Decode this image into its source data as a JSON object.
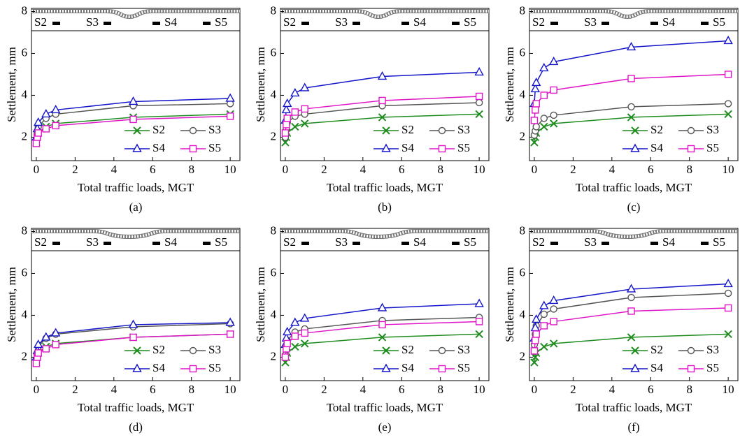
{
  "chart_data": [
    {
      "type": "line",
      "label": "(a)",
      "xlabel": "Total traffic loads, MGT",
      "ylabel": "Settlement, mm",
      "inset_labels": [
        "S2",
        "S3",
        "S4",
        "S5"
      ],
      "legend": "lower right",
      "x": [
        0,
        0.05,
        0.1,
        0.5,
        1,
        5,
        10
      ],
      "xlim": [
        -0.25,
        10.5
      ],
      "xticks": [
        0,
        2,
        4,
        6,
        8,
        10
      ],
      "ylim": [
        0.88,
        8.15
      ],
      "yticks": [
        2,
        4,
        6,
        8
      ],
      "series": [
        {
          "name": "S2",
          "color": "#1e8c1e",
          "marker": "x",
          "values": [
            1.75,
            2.0,
            2.2,
            2.5,
            2.65,
            2.95,
            3.1
          ]
        },
        {
          "name": "S3",
          "color": "#555555",
          "marker": "circle",
          "values": [
            1.9,
            2.2,
            2.5,
            2.9,
            3.1,
            3.5,
            3.6
          ]
        },
        {
          "name": "S4",
          "color": "#1414c8",
          "marker": "triangle",
          "values": [
            2.0,
            2.4,
            2.7,
            3.1,
            3.3,
            3.7,
            3.85
          ]
        },
        {
          "name": "S5",
          "color": "#e014c8",
          "marker": "square",
          "values": [
            1.7,
            2.0,
            2.2,
            2.4,
            2.55,
            2.85,
            3.0
          ]
        }
      ]
    },
    {
      "type": "line",
      "label": "(b)",
      "xlabel": "Total traffic loads, MGT",
      "ylabel": "Settlement, mm",
      "inset_labels": [
        "S2",
        "S3",
        "S4",
        "S5"
      ],
      "legend": "lower right",
      "x": [
        0,
        0.05,
        0.1,
        0.5,
        1,
        5,
        10
      ],
      "xlim": [
        -0.25,
        10.5
      ],
      "xticks": [
        0,
        2,
        4,
        6,
        8,
        10
      ],
      "ylim": [
        0.88,
        8.15
      ],
      "yticks": [
        2,
        4,
        6,
        8
      ],
      "series": [
        {
          "name": "S2",
          "color": "#1e8c1e",
          "marker": "x",
          "values": [
            1.75,
            2.0,
            2.2,
            2.5,
            2.65,
            2.95,
            3.1
          ]
        },
        {
          "name": "S3",
          "color": "#555555",
          "marker": "circle",
          "values": [
            2.0,
            2.4,
            2.7,
            3.0,
            3.1,
            3.5,
            3.65
          ]
        },
        {
          "name": "S4",
          "color": "#1414c8",
          "marker": "triangle",
          "values": [
            2.8,
            3.3,
            3.6,
            4.1,
            4.35,
            4.9,
            5.1
          ]
        },
        {
          "name": "S5",
          "color": "#e014c8",
          "marker": "square",
          "values": [
            2.2,
            2.6,
            2.9,
            3.2,
            3.35,
            3.75,
            3.95
          ]
        }
      ]
    },
    {
      "type": "line",
      "label": "(c)",
      "xlabel": "Total traffic loads, MGT",
      "ylabel": "Settlement, mm",
      "inset_labels": [
        "S2",
        "S3",
        "S4",
        "S5"
      ],
      "legend": "lower right",
      "x": [
        0,
        0.05,
        0.1,
        0.5,
        1,
        5,
        10
      ],
      "xlim": [
        -0.25,
        10.5
      ],
      "xticks": [
        0,
        2,
        4,
        6,
        8,
        10
      ],
      "ylim": [
        0.88,
        8.15
      ],
      "yticks": [
        2,
        4,
        6,
        8
      ],
      "series": [
        {
          "name": "S2",
          "color": "#1e8c1e",
          "marker": "x",
          "values": [
            1.75,
            2.0,
            2.2,
            2.5,
            2.65,
            2.95,
            3.1
          ]
        },
        {
          "name": "S3",
          "color": "#555555",
          "marker": "circle",
          "values": [
            2.1,
            2.3,
            2.5,
            2.9,
            3.05,
            3.45,
            3.6
          ]
        },
        {
          "name": "S4",
          "color": "#1414c8",
          "marker": "triangle",
          "values": [
            3.6,
            4.3,
            4.6,
            5.3,
            5.6,
            6.3,
            6.6
          ]
        },
        {
          "name": "S5",
          "color": "#e014c8",
          "marker": "square",
          "values": [
            2.8,
            3.3,
            3.6,
            4.0,
            4.25,
            4.8,
            5.0
          ]
        }
      ]
    },
    {
      "type": "line",
      "label": "(d)",
      "xlabel": "Total traffic loads, MGT",
      "ylabel": "Settlement, mm",
      "inset_labels": [
        "S2",
        "S3",
        "S4",
        "S5"
      ],
      "legend": "lower right",
      "x": [
        0,
        0.05,
        0.1,
        0.5,
        1,
        5,
        10
      ],
      "xlim": [
        -0.25,
        10.5
      ],
      "xticks": [
        0,
        2,
        4,
        6,
        8,
        10
      ],
      "ylim": [
        0.88,
        8.15
      ],
      "yticks": [
        2,
        4,
        6,
        8
      ],
      "series": [
        {
          "name": "S2",
          "color": "#1e8c1e",
          "marker": "x",
          "values": [
            1.75,
            2.0,
            2.2,
            2.5,
            2.65,
            2.95,
            3.1
          ]
        },
        {
          "name": "S3",
          "color": "#555555",
          "marker": "circle",
          "values": [
            1.9,
            2.2,
            2.5,
            2.9,
            3.1,
            3.45,
            3.6
          ]
        },
        {
          "name": "S4",
          "color": "#1414c8",
          "marker": "triangle",
          "values": [
            2.0,
            2.3,
            2.6,
            2.95,
            3.15,
            3.55,
            3.65
          ]
        },
        {
          "name": "S5",
          "color": "#e014c8",
          "marker": "square",
          "values": [
            1.7,
            2.0,
            2.2,
            2.4,
            2.6,
            2.95,
            3.1
          ]
        }
      ]
    },
    {
      "type": "line",
      "label": "(e)",
      "xlabel": "Total traffic loads, MGT",
      "ylabel": "Settlement, mm",
      "inset_labels": [
        "S2",
        "S3",
        "S4",
        "S5"
      ],
      "legend": "lower right",
      "x": [
        0,
        0.05,
        0.1,
        0.5,
        1,
        5,
        10
      ],
      "xlim": [
        -0.25,
        10.5
      ],
      "xticks": [
        0,
        2,
        4,
        6,
        8,
        10
      ],
      "ylim": [
        0.88,
        8.15
      ],
      "yticks": [
        2,
        4,
        6,
        8
      ],
      "series": [
        {
          "name": "S2",
          "color": "#1e8c1e",
          "marker": "x",
          "values": [
            1.75,
            2.0,
            2.2,
            2.5,
            2.65,
            2.95,
            3.1
          ]
        },
        {
          "name": "S3",
          "color": "#555555",
          "marker": "circle",
          "values": [
            2.1,
            2.5,
            2.8,
            3.2,
            3.35,
            3.75,
            3.9
          ]
        },
        {
          "name": "S4",
          "color": "#1414c8",
          "marker": "triangle",
          "values": [
            2.6,
            2.9,
            3.2,
            3.65,
            3.85,
            4.35,
            4.55
          ]
        },
        {
          "name": "S5",
          "color": "#e014c8",
          "marker": "square",
          "values": [
            2.0,
            2.4,
            2.65,
            3.0,
            3.15,
            3.55,
            3.7
          ]
        }
      ]
    },
    {
      "type": "line",
      "label": "(f)",
      "xlabel": "Total traffic loads, MGT",
      "ylabel": "Settlement, mm",
      "inset_labels": [
        "S2",
        "S3",
        "S4",
        "S5"
      ],
      "legend": "lower right",
      "x": [
        0,
        0.05,
        0.1,
        0.5,
        1,
        5,
        10
      ],
      "xlim": [
        -0.25,
        10.5
      ],
      "xticks": [
        0,
        2,
        4,
        6,
        8,
        10
      ],
      "ylim": [
        0.88,
        8.15
      ],
      "yticks": [
        2,
        4,
        6,
        8
      ],
      "series": [
        {
          "name": "S2",
          "color": "#1e8c1e",
          "marker": "x",
          "values": [
            1.75,
            2.0,
            2.2,
            2.5,
            2.65,
            2.95,
            3.1
          ]
        },
        {
          "name": "S3",
          "color": "#555555",
          "marker": "circle",
          "values": [
            2.6,
            3.1,
            3.5,
            4.05,
            4.3,
            4.85,
            5.05
          ]
        },
        {
          "name": "S4",
          "color": "#1414c8",
          "marker": "triangle",
          "values": [
            2.9,
            3.4,
            3.8,
            4.45,
            4.7,
            5.25,
            5.5
          ]
        },
        {
          "name": "S5",
          "color": "#e014c8",
          "marker": "square",
          "values": [
            2.3,
            2.8,
            3.1,
            3.5,
            3.7,
            4.2,
            4.35
          ]
        }
      ]
    }
  ]
}
